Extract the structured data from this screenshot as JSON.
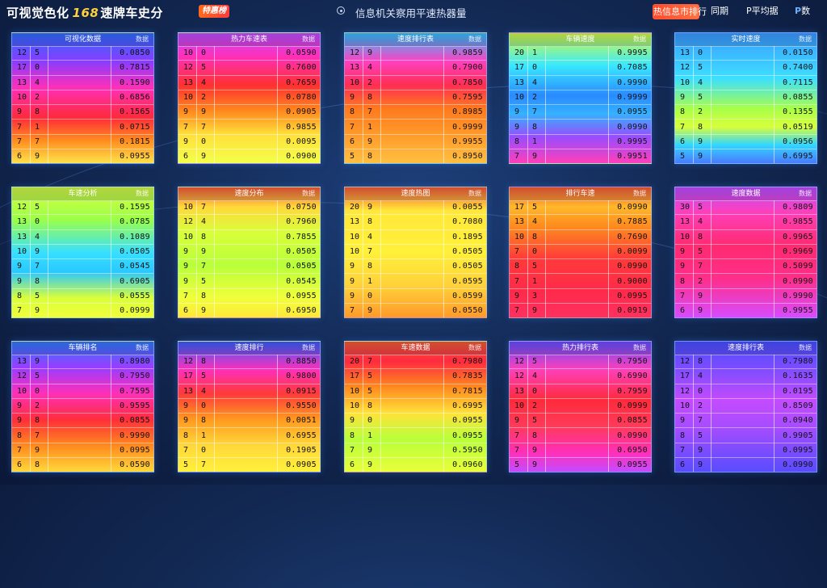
{
  "header": {
    "brand_part1": "可视觉色化",
    "brand_number": "168",
    "brand_part2": "速牌车史分",
    "brand_badge": "特惠榜",
    "subtitle": "信息机关察用平速热器量",
    "button_primary": "热信息市排行",
    "button_a": "同期",
    "button_b": "P平均据",
    "button_c_prefix": "P",
    "button_c_suffix": "数"
  },
  "cards": [
    {
      "title": "可视化数据",
      "tag": "数据",
      "rows": [
        [
          "12",
          "5",
          "0.0850"
        ],
        [
          "17",
          "0",
          "0.7815"
        ],
        [
          "13",
          "4",
          "0.1590"
        ],
        [
          "10",
          "2",
          "0.6856"
        ],
        [
          "9",
          "8",
          "0.1565"
        ],
        [
          "7",
          "1",
          "0.0715"
        ],
        [
          "7",
          "7",
          "0.1815"
        ],
        [
          "6",
          "9",
          "0.0955"
        ]
      ]
    },
    {
      "title": "热力车速表",
      "tag": "数据",
      "rows": [
        [
          "10",
          "0",
          "0.0590"
        ],
        [
          "12",
          "5",
          "0.7600"
        ],
        [
          "13",
          "4",
          "0.7659"
        ],
        [
          "10",
          "2",
          "0.0780"
        ],
        [
          "9",
          "9",
          "0.0905"
        ],
        [
          "7",
          "7",
          "0.9855"
        ],
        [
          "9",
          "0",
          "0.0095"
        ],
        [
          "6",
          "9",
          "0.0900"
        ]
      ]
    },
    {
      "title": "速度排行表",
      "tag": "数据",
      "rows": [
        [
          "12",
          "9",
          "0.9859"
        ],
        [
          "13",
          "4",
          "0.7900"
        ],
        [
          "10",
          "2",
          "0.7850"
        ],
        [
          "9",
          "8",
          "0.7595"
        ],
        [
          "8",
          "7",
          "0.8985"
        ],
        [
          "7",
          "1",
          "0.9999"
        ],
        [
          "6",
          "9",
          "0.9955"
        ],
        [
          "5",
          "8",
          "0.8950"
        ]
      ]
    },
    {
      "title": "车辆速度",
      "tag": "数据",
      "rows": [
        [
          "20",
          "1",
          "0.9995"
        ],
        [
          "17",
          "0",
          "0.7085"
        ],
        [
          "13",
          "4",
          "0.9990"
        ],
        [
          "10",
          "2",
          "0.9999"
        ],
        [
          "9",
          "7",
          "0.0955"
        ],
        [
          "9",
          "8",
          "0.0990"
        ],
        [
          "8",
          "1",
          "0.9995"
        ],
        [
          "7",
          "9",
          "0.9951"
        ]
      ]
    },
    {
      "title": "实时速度",
      "tag": "数据",
      "rows": [
        [
          "13",
          "0",
          "0.0150"
        ],
        [
          "12",
          "5",
          "0.7400"
        ],
        [
          "10",
          "4",
          "0.7115"
        ],
        [
          "9",
          "5",
          "0.0855"
        ],
        [
          "8",
          "2",
          "0.1355"
        ],
        [
          "7",
          "8",
          "0.0519"
        ],
        [
          "6",
          "9",
          "0.0956"
        ],
        [
          "5",
          "9",
          "0.6995"
        ]
      ]
    },
    {
      "title": "车速分析",
      "tag": "数据",
      "rows": [
        [
          "12",
          "5",
          "0.1595"
        ],
        [
          "13",
          "0",
          "0.0785"
        ],
        [
          "13",
          "4",
          "0.1089"
        ],
        [
          "10",
          "9",
          "0.0505"
        ],
        [
          "9",
          "7",
          "0.0545"
        ],
        [
          "9",
          "8",
          "0.6905"
        ],
        [
          "8",
          "5",
          "0.0555"
        ],
        [
          "7",
          "9",
          "0.0999"
        ]
      ]
    },
    {
      "title": "速度分布",
      "tag": "数据",
      "rows": [
        [
          "10",
          "7",
          "0.0750"
        ],
        [
          "12",
          "4",
          "0.7960"
        ],
        [
          "10",
          "8",
          "0.7855"
        ],
        [
          "9",
          "9",
          "0.0505"
        ],
        [
          "9",
          "7",
          "0.0505"
        ],
        [
          "9",
          "5",
          "0.0545"
        ],
        [
          "7",
          "8",
          "0.0955"
        ],
        [
          "6",
          "9",
          "0.6950"
        ]
      ]
    },
    {
      "title": "速度热图",
      "tag": "数据",
      "rows": [
        [
          "20",
          "9",
          "0.0055"
        ],
        [
          "13",
          "8",
          "0.7080"
        ],
        [
          "10",
          "4",
          "0.1895"
        ],
        [
          "10",
          "7",
          "0.0505"
        ],
        [
          "9",
          "8",
          "0.0505"
        ],
        [
          "9",
          "1",
          "0.0595"
        ],
        [
          "9",
          "0",
          "0.0599"
        ],
        [
          "7",
          "9",
          "0.0550"
        ]
      ]
    },
    {
      "title": "排行车速",
      "tag": "数据",
      "rows": [
        [
          "17",
          "5",
          "0.0990"
        ],
        [
          "13",
          "4",
          "0.7885"
        ],
        [
          "10",
          "8",
          "0.7690"
        ],
        [
          "7",
          "0",
          "0.0099"
        ],
        [
          "8",
          "5",
          "0.0990"
        ],
        [
          "7",
          "1",
          "0.9000"
        ],
        [
          "9",
          "3",
          "0.0995"
        ],
        [
          "7",
          "9",
          "0.0919"
        ]
      ]
    },
    {
      "title": "速度数据",
      "tag": "数据",
      "rows": [
        [
          "30",
          "5",
          "0.9809"
        ],
        [
          "13",
          "4",
          "0.9855"
        ],
        [
          "10",
          "8",
          "0.9965"
        ],
        [
          "9",
          "5",
          "0.9969"
        ],
        [
          "9",
          "7",
          "0.5099"
        ],
        [
          "8",
          "2",
          "0.0990"
        ],
        [
          "7",
          "9",
          "0.9990"
        ],
        [
          "6",
          "9",
          "0.9955"
        ]
      ]
    },
    {
      "title": "车辆排名",
      "tag": "数据",
      "rows": [
        [
          "13",
          "9",
          "0.8980"
        ],
        [
          "12",
          "5",
          "0.7950"
        ],
        [
          "10",
          "0",
          "0.7595"
        ],
        [
          "9",
          "2",
          "0.9595"
        ],
        [
          "9",
          "8",
          "0.0855"
        ],
        [
          "8",
          "7",
          "0.9990"
        ],
        [
          "7",
          "9",
          "0.0995"
        ],
        [
          "6",
          "8",
          "0.0590"
        ]
      ]
    },
    {
      "title": "速度排行",
      "tag": "数据",
      "rows": [
        [
          "12",
          "8",
          "0.8850"
        ],
        [
          "17",
          "5",
          "0.9800"
        ],
        [
          "13",
          "4",
          "0.0915"
        ],
        [
          "9",
          "0",
          "0.9550"
        ],
        [
          "9",
          "8",
          "0.0051"
        ],
        [
          "8",
          "1",
          "0.6955"
        ],
        [
          "7",
          "0",
          "0.1905"
        ],
        [
          "5",
          "7",
          "0.0905"
        ]
      ]
    },
    {
      "title": "车速数据",
      "tag": "数据",
      "rows": [
        [
          "20",
          "7",
          "0.7980"
        ],
        [
          "17",
          "5",
          "0.7835"
        ],
        [
          "10",
          "5",
          "0.7815"
        ],
        [
          "10",
          "8",
          "0.6995"
        ],
        [
          "9",
          "0",
          "0.0955"
        ],
        [
          "8",
          "1",
          "0.0955"
        ],
        [
          "7",
          "9",
          "0.5950"
        ],
        [
          "6",
          "9",
          "0.0960"
        ]
      ]
    },
    {
      "title": "热力排行表",
      "tag": "数据",
      "rows": [
        [
          "12",
          "5",
          "0.7950"
        ],
        [
          "12",
          "4",
          "0.6990"
        ],
        [
          "13",
          "0",
          "0.7959"
        ],
        [
          "10",
          "2",
          "0.0999"
        ],
        [
          "9",
          "5",
          "0.0855"
        ],
        [
          "7",
          "8",
          "0.0990"
        ],
        [
          "7",
          "9",
          "0.6950"
        ],
        [
          "5",
          "9",
          "0.0955"
        ]
      ]
    },
    {
      "title": "速度排行表",
      "tag": "数据",
      "rows": [
        [
          "12",
          "8",
          "0.7980"
        ],
        [
          "17",
          "4",
          "0.1635"
        ],
        [
          "12",
          "0",
          "0.0195"
        ],
        [
          "10",
          "2",
          "0.8509"
        ],
        [
          "9",
          "7",
          "0.0940"
        ],
        [
          "8",
          "5",
          "0.9905"
        ],
        [
          "7",
          "9",
          "0.0995"
        ],
        [
          "6",
          "9",
          "0.0990"
        ]
      ]
    }
  ]
}
